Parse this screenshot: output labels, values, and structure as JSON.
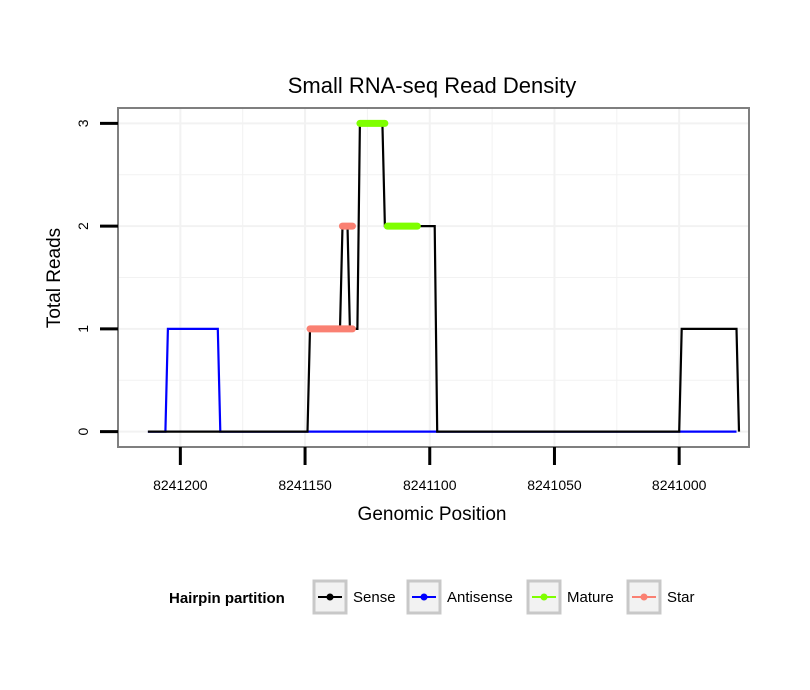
{
  "chart_data": {
    "type": "line",
    "title": "Small RNA-seq Read Density",
    "xlabel": "Genomic Position",
    "ylabel": "Total Reads",
    "x_reversed": true,
    "xlim": [
      8241225,
      8240972
    ],
    "ylim": [
      -0.15,
      3.15
    ],
    "x_ticks": [
      8241200,
      8241150,
      8241100,
      8241050,
      8241000
    ],
    "x_tick_labels": [
      "8241200",
      "8241150",
      "8241100",
      "8241050",
      "8241000"
    ],
    "y_ticks": [
      0,
      1,
      2,
      3
    ],
    "y_tick_labels": [
      "0",
      "1",
      "2",
      "3"
    ],
    "grid": true,
    "legend_position": "bottom",
    "legend_title": "Hairpin partition",
    "series": [
      {
        "name": "Sense",
        "color": "#000000",
        "kind": "line",
        "x": [
          8241213,
          8241149,
          8241148,
          8241136,
          8241135,
          8241133,
          8241132,
          8241129,
          8241128,
          8241119,
          8241118,
          8241108,
          8241107,
          8241098,
          8241097,
          8241000,
          8240999,
          8240977,
          8240976
        ],
        "y": [
          0,
          0,
          1,
          1,
          2,
          2,
          1,
          1,
          3,
          3,
          2,
          2,
          2,
          2,
          0,
          0,
          1,
          1,
          0
        ]
      },
      {
        "name": "Antisense",
        "color": "#0000ff",
        "kind": "line",
        "x": [
          8241213,
          8241206,
          8241205,
          8241185,
          8241184,
          8240977
        ],
        "y": [
          0,
          0,
          1,
          1,
          0,
          0
        ]
      },
      {
        "name": "Mature",
        "color": "#7fff00",
        "kind": "thick-segment",
        "segments": [
          {
            "x": [
              8241128,
              8241118
            ],
            "y": 3
          },
          {
            "x": [
              8241117,
              8241105
            ],
            "y": 2
          }
        ]
      },
      {
        "name": "Star",
        "color": "#fa8072",
        "kind": "thick-segment",
        "segments": [
          {
            "x": [
              8241148,
              8241131
            ],
            "y": 1
          },
          {
            "x": [
              8241135,
              8241131
            ],
            "y": 2
          }
        ]
      }
    ]
  }
}
